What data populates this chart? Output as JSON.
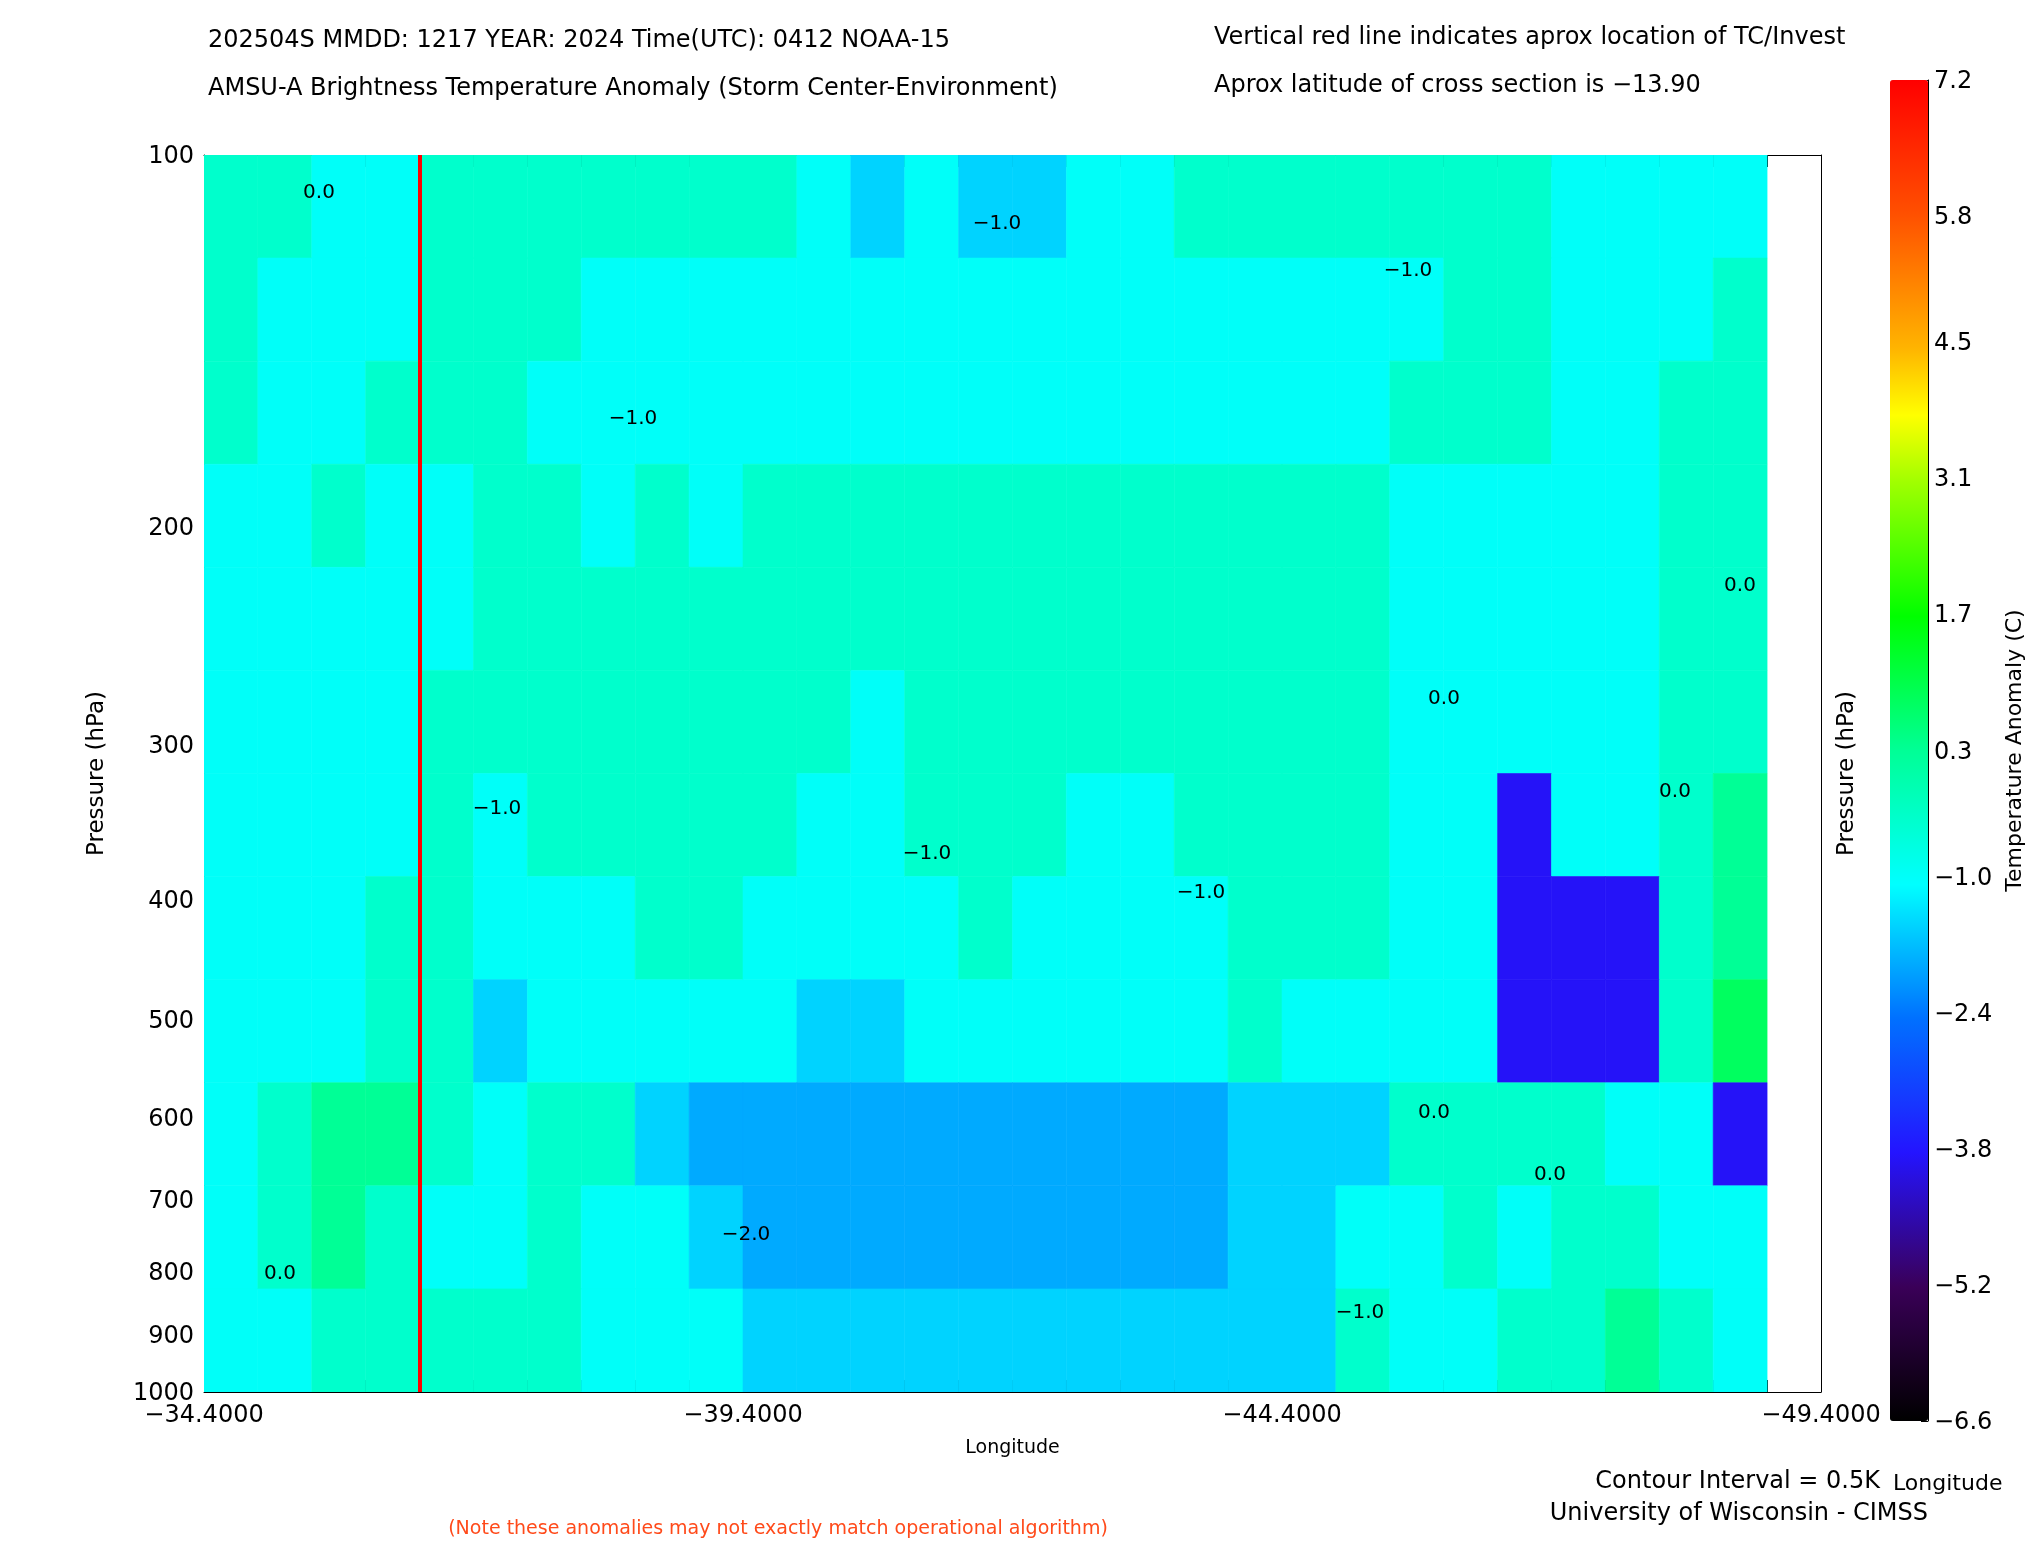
{
  "chart_data": {
    "type": "heatmap",
    "title": "202504S MMDD: 1217 YEAR: 2024 Time(UTC): 0412 NOAA-15",
    "subtitle": "AMSU-A Brightness Temperature Anomaly (Storm Center-Environment)",
    "xlabel": "Longitude",
    "ylabel": "Pressure (hPa)",
    "y2label": "Pressure (hPa)",
    "clabel": "Temperature Anomaly (C)",
    "annotations": [
      "Vertical red line indicates aprox location of TC/Invest",
      "Aprox latitude of cross section is −13.90",
      "Contour Interval = 0.5K",
      "Longitude",
      "University of Wisconsin - CIMSS",
      "(Note these anomalies may not exactly match operational algorithm)",
      "0.0",
      "−1.0",
      "−1.0",
      "−1.0",
      "0.0",
      "0.0",
      "−1.0",
      "0.0",
      "−1.0",
      "−1.0",
      "0.0",
      "0.0",
      "−2.0",
      "0.0",
      "−1.0"
    ],
    "x": [
      -34.65,
      -35.15,
      -35.65,
      -36.15,
      -36.65,
      -37.15,
      -37.65,
      -38.15,
      -38.65,
      -39.15,
      -39.65,
      -40.15,
      -40.65,
      -41.15,
      -41.65,
      -42.15,
      -42.65,
      -43.15,
      -43.65,
      -44.15,
      -44.65,
      -45.15,
      -45.65,
      -46.15,
      -46.65,
      -47.15,
      -47.65,
      -48.15,
      -48.65
    ],
    "cells": [
      [
        -0.4,
        -0.4,
        -1,
        -1,
        -0.4,
        -0.4,
        -0.4,
        -0.4,
        -0.4,
        -0.4,
        -0.4,
        -1,
        -1.5,
        -1,
        -1.5,
        -1.5,
        -1,
        -1,
        -0.4,
        -0.4,
        -0.4,
        -0.4,
        -0.4,
        -0.4,
        -0.4,
        -1,
        -1,
        -1,
        -1
      ],
      [
        -0.4,
        -1,
        -1,
        -1,
        -0.4,
        -0.4,
        -0.4,
        -1,
        -1,
        -1,
        -1,
        -1,
        -1,
        -1,
        -1,
        -1,
        -1,
        -1,
        -1,
        -1,
        -1,
        -1,
        -1,
        -0.4,
        -0.4,
        -1,
        -1,
        -1,
        -0.4
      ],
      [
        -0.4,
        -1,
        -1,
        -0.4,
        -0.4,
        -0.4,
        -1,
        -1,
        -1,
        -1,
        -1,
        -1,
        -1,
        -1,
        -1,
        -1,
        -1,
        -1,
        -1,
        -1,
        -1,
        -1,
        -0.4,
        -0.4,
        -0.4,
        -1,
        -1,
        -0.4,
        -0.4
      ],
      [
        -1,
        -1,
        -0.4,
        -1,
        -1,
        -0.4,
        -0.4,
        -1,
        -0.4,
        -1,
        -0.4,
        -0.4,
        -0.4,
        -0.4,
        -0.4,
        -0.4,
        -0.4,
        -0.4,
        -0.4,
        -0.4,
        -0.4,
        -0.4,
        -1,
        -1,
        -1,
        -1,
        -1,
        -0.4,
        -0.4
      ],
      [
        -1,
        -1,
        -1,
        -1,
        -1,
        -0.4,
        -0.4,
        -0.4,
        -0.4,
        -0.4,
        -0.4,
        -0.4,
        -0.4,
        -0.4,
        -0.4,
        -0.4,
        -0.4,
        -0.4,
        -0.4,
        -0.4,
        -0.4,
        -0.4,
        -1,
        -1,
        -1,
        -1,
        -1,
        -0.4,
        -0.4
      ],
      [
        -1,
        -1,
        -1,
        -1,
        -0.4,
        -0.4,
        -0.4,
        -0.4,
        -0.4,
        -0.4,
        -0.4,
        -0.4,
        -1,
        -0.4,
        -0.4,
        -0.4,
        -0.4,
        -0.4,
        -0.4,
        -0.4,
        -0.4,
        -0.4,
        -1,
        -1,
        -1,
        -1,
        -1,
        -0.4,
        -0.4
      ],
      [
        -1,
        -1,
        -1,
        -1,
        -0.4,
        -1,
        -0.4,
        -0.4,
        -0.4,
        -0.4,
        -0.4,
        -1,
        -1,
        -0.4,
        -0.4,
        -0.4,
        -1,
        -1,
        -0.4,
        -0.4,
        -0.4,
        -0.4,
        -1,
        -1,
        -3.9,
        -1,
        -1,
        -0.4,
        0.3
      ],
      [
        -1,
        -1,
        -1,
        -0.4,
        -0.4,
        -1,
        -1,
        -1,
        -0.4,
        -0.4,
        -1,
        -1,
        -1,
        -1,
        -0.4,
        -1,
        -1,
        -1,
        -1,
        -0.4,
        -0.4,
        -0.4,
        -1,
        -1,
        -3.9,
        -3.9,
        -3.9,
        -0.4,
        0.3
      ],
      [
        -1,
        -1,
        -1,
        -0.4,
        -0.4,
        -1.5,
        -1,
        -1,
        -1,
        -1,
        -1,
        -1.5,
        -1.5,
        -1,
        -1,
        -1,
        -1,
        -1,
        -1,
        -0.4,
        -1,
        -1,
        -1,
        -1,
        -3.9,
        -3.9,
        -3.9,
        -0.4,
        0.8
      ],
      [
        -1,
        -0.4,
        0.3,
        0.3,
        -0.4,
        -1,
        -0.4,
        -0.4,
        -1.5,
        -1.9,
        -1.9,
        -1.9,
        -1.9,
        -1.9,
        -1.9,
        -1.9,
        -1.9,
        -1.9,
        -1.9,
        -1.5,
        -1.5,
        -1.5,
        -0.4,
        -0.4,
        -0.4,
        -0.4,
        -1,
        -1,
        -3.9
      ],
      [
        -1,
        -0.4,
        0.3,
        -0.4,
        -1,
        -1,
        -0.4,
        -1,
        -1,
        -1.5,
        -1.9,
        -1.9,
        -1.9,
        -1.9,
        -1.9,
        -1.9,
        -1.9,
        -1.9,
        -1.9,
        -1.5,
        -1.5,
        -1,
        -1,
        -0.4,
        -1,
        -0.4,
        -0.4,
        -1,
        -1
      ],
      [
        -1,
        -1,
        -0.4,
        -0.4,
        -0.4,
        -0.4,
        -0.4,
        -1,
        -1,
        -1,
        -1.5,
        -1.5,
        -1.5,
        -1.5,
        -1.5,
        -1.5,
        -1.5,
        -1.5,
        -1.5,
        -1.5,
        -1.5,
        -0.4,
        -1,
        -1,
        -0.4,
        -0.4,
        0.3,
        -0.4,
        -1
      ]
    ],
    "xlim": [
      -34.4,
      -49.4
    ],
    "xticks": [
      {
        "value": -34.4,
        "label": "−34.4000"
      },
      {
        "value": -34.9,
        "label": null
      },
      {
        "value": -35.4,
        "label": null
      },
      {
        "value": -35.9,
        "label": null
      },
      {
        "value": -36.4,
        "label": null
      },
      {
        "value": -36.9,
        "label": null
      },
      {
        "value": -37.4,
        "label": null
      },
      {
        "value": -37.9,
        "label": null
      },
      {
        "value": -38.4,
        "label": null
      },
      {
        "value": -38.9,
        "label": null
      },
      {
        "value": -39.4,
        "label": "−39.4000"
      },
      {
        "value": -39.9,
        "label": null
      },
      {
        "value": -40.4,
        "label": null
      },
      {
        "value": -40.9,
        "label": null
      },
      {
        "value": -41.4,
        "label": null
      },
      {
        "value": -41.9,
        "label": null
      },
      {
        "value": -42.4,
        "label": null
      },
      {
        "value": -42.9,
        "label": null
      },
      {
        "value": -43.4,
        "label": null
      },
      {
        "value": -43.9,
        "label": null
      },
      {
        "value": -44.4,
        "label": "−44.4000"
      },
      {
        "value": -44.9,
        "label": null
      },
      {
        "value": -45.4,
        "label": null
      },
      {
        "value": -45.9,
        "label": null
      },
      {
        "value": -46.4,
        "label": null
      },
      {
        "value": -46.9,
        "label": null
      },
      {
        "value": -47.4,
        "label": null
      },
      {
        "value": -47.9,
        "label": null
      },
      {
        "value": -48.4,
        "label": null
      },
      {
        "value": -48.9,
        "label": null
      },
      {
        "value": -49.4,
        "label": "−49.4000"
      }
    ],
    "ylim": [
      1000,
      100
    ],
    "yticks": [
      100,
      200,
      300,
      400,
      500,
      600,
      700,
      800,
      900,
      1000
    ],
    "log": "y",
    "clim": [
      -6.6,
      7.2
    ],
    "cticks": [
      {
        "value": -6.6,
        "label": "−6.6"
      },
      {
        "value": -5.2,
        "label": "−5.2"
      },
      {
        "value": -3.8,
        "label": "−3.8"
      },
      {
        "value": -2.4,
        "label": "−2.4"
      },
      {
        "value": -1.0,
        "label": "−1.0"
      },
      0.3,
      1.7,
      3.1,
      4.5,
      5.8,
      7.2
    ],
    "ref_lines": [
      {
        "axis": "x",
        "value": -36.4,
        "color": "#ff0000"
      }
    ]
  }
}
